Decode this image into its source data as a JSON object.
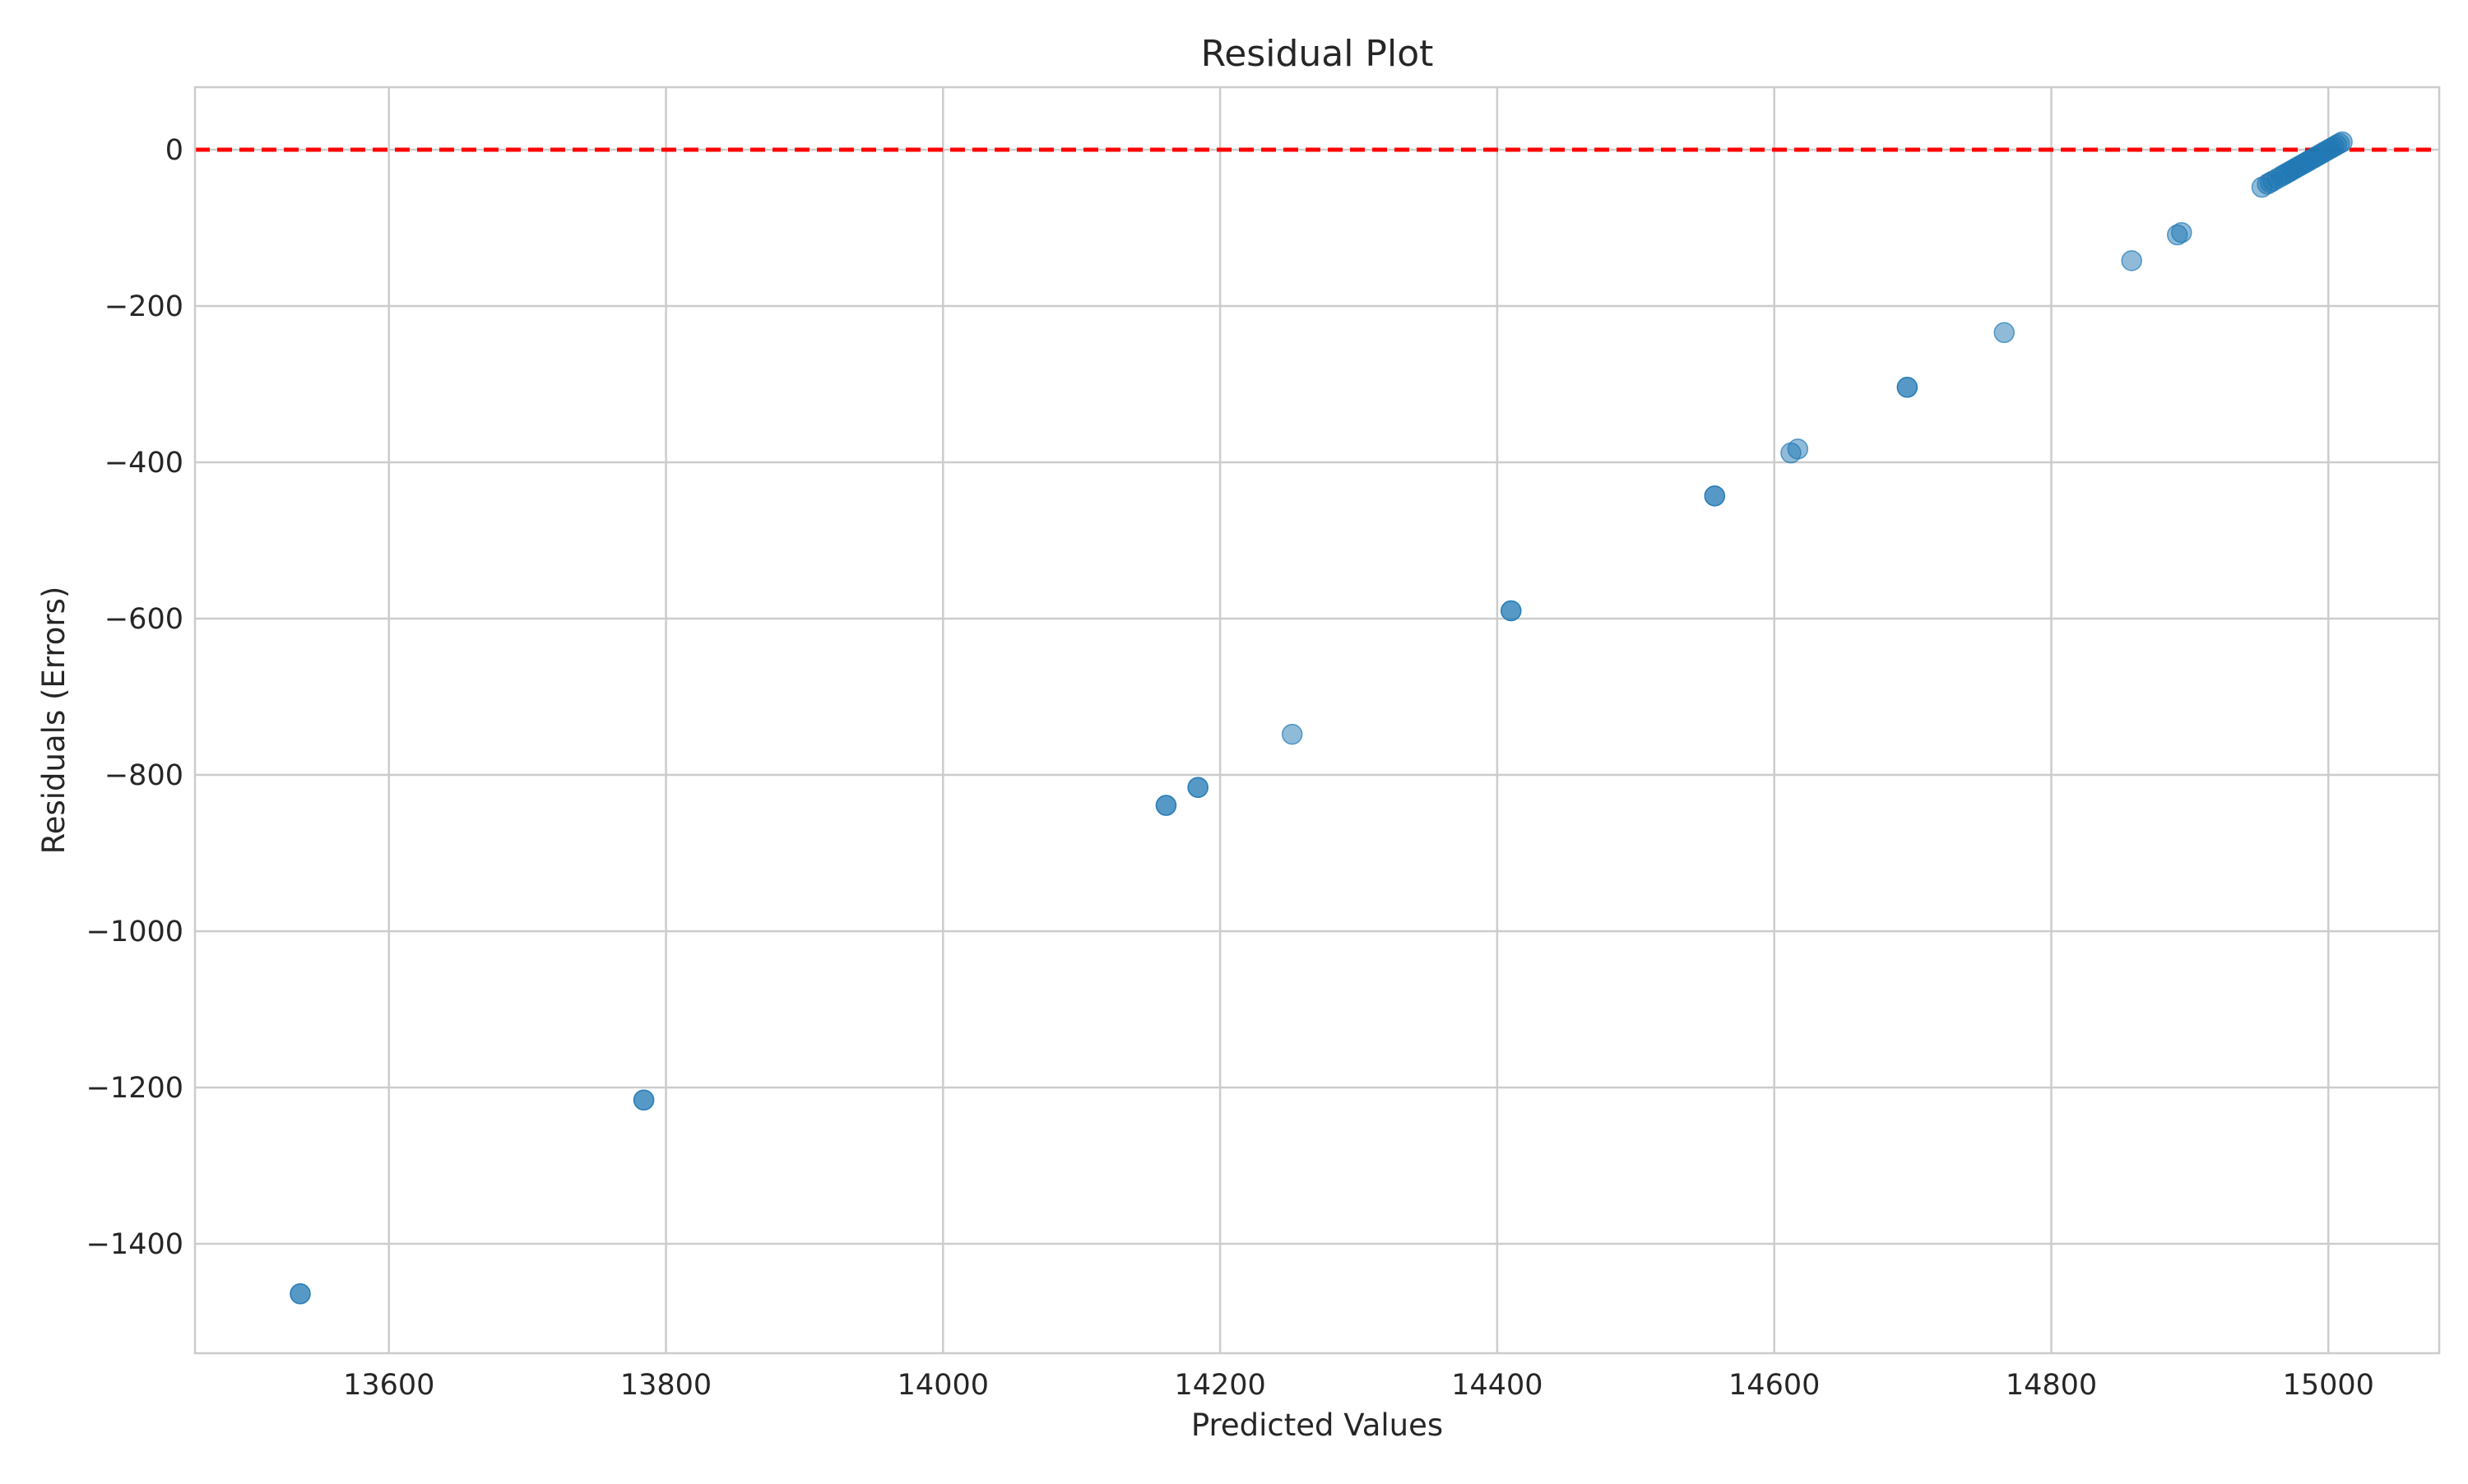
{
  "chart_data": {
    "type": "scatter",
    "title": "Residual Plot",
    "xlabel": "Predicted Values",
    "ylabel": "Residuals (Errors)",
    "xlim": [
      13460,
      15080
    ],
    "ylim": [
      -1540,
      80
    ],
    "x_ticks": [
      13600,
      13800,
      14000,
      14200,
      14400,
      14600,
      14800,
      15000
    ],
    "y_ticks": [
      0,
      -200,
      -400,
      -600,
      -800,
      -1000,
      -1200,
      -1400
    ],
    "x_tick_labels": [
      "13600",
      "13800",
      "14000",
      "14200",
      "14400",
      "14600",
      "14800",
      "15000"
    ],
    "y_tick_labels": [
      "0",
      "−200",
      "−400",
      "−600",
      "−800",
      "−1000",
      "−1200",
      "−1400"
    ],
    "grid": true,
    "reference_line": {
      "y": 0,
      "color": "#ff0000",
      "style": "dashed"
    },
    "marker_color": "#1f77b4",
    "marker_alpha": 0.5,
    "points": [
      {
        "x": 13536,
        "y": -1464
      },
      {
        "x": 13536,
        "y": -1464
      },
      {
        "x": 13784,
        "y": -1216
      },
      {
        "x": 13784,
        "y": -1216
      },
      {
        "x": 14161,
        "y": -839
      },
      {
        "x": 14161,
        "y": -839
      },
      {
        "x": 14184,
        "y": -816
      },
      {
        "x": 14184,
        "y": -816
      },
      {
        "x": 14252,
        "y": -748
      },
      {
        "x": 14410,
        "y": -590
      },
      {
        "x": 14410,
        "y": -590
      },
      {
        "x": 14557,
        "y": -443
      },
      {
        "x": 14557,
        "y": -443
      },
      {
        "x": 14612,
        "y": -388
      },
      {
        "x": 14617,
        "y": -383
      },
      {
        "x": 14696,
        "y": -304
      },
      {
        "x": 14696,
        "y": -304
      },
      {
        "x": 14766,
        "y": -234
      },
      {
        "x": 14858,
        "y": -142
      },
      {
        "x": 14891,
        "y": -109
      },
      {
        "x": 14894,
        "y": -106
      },
      {
        "x": 14952,
        "y": -48
      },
      {
        "x": 14956,
        "y": -44
      },
      {
        "x": 14958,
        "y": -42
      },
      {
        "x": 14960,
        "y": -40
      },
      {
        "x": 14963,
        "y": -37
      },
      {
        "x": 14966,
        "y": -34
      },
      {
        "x": 14968,
        "y": -32
      },
      {
        "x": 14970,
        "y": -30
      },
      {
        "x": 14972,
        "y": -28
      },
      {
        "x": 14974,
        "y": -26
      },
      {
        "x": 14976,
        "y": -24
      },
      {
        "x": 14978,
        "y": -22
      },
      {
        "x": 14980,
        "y": -20
      },
      {
        "x": 14982,
        "y": -18
      },
      {
        "x": 14984,
        "y": -16
      },
      {
        "x": 14986,
        "y": -14
      },
      {
        "x": 14988,
        "y": -12
      },
      {
        "x": 14990,
        "y": -10
      },
      {
        "x": 14992,
        "y": -8
      },
      {
        "x": 14994,
        "y": -6
      },
      {
        "x": 14996,
        "y": -4
      },
      {
        "x": 14998,
        "y": -2
      },
      {
        "x": 15000,
        "y": 0
      },
      {
        "x": 15002,
        "y": 2
      },
      {
        "x": 15004,
        "y": 4
      },
      {
        "x": 15006,
        "y": 6
      },
      {
        "x": 15008,
        "y": 8
      },
      {
        "x": 15010,
        "y": 10
      }
    ]
  }
}
